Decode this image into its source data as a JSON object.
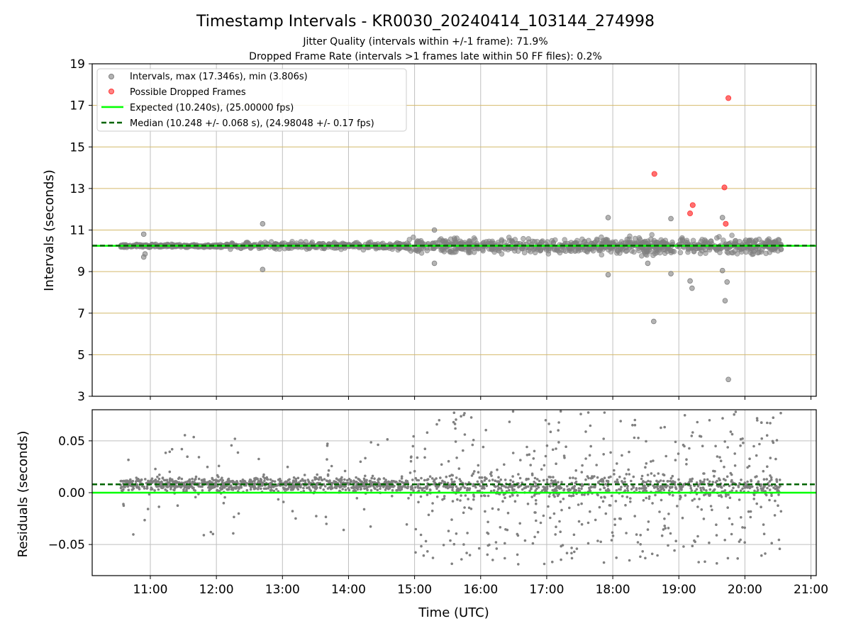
{
  "figure": {
    "title": "Timestamp Intervals - KR0030_20240414_103144_274998",
    "subtitle_1": "Jitter Quality (intervals within +/-1 frame): 71.9%",
    "subtitle_2": "Dropped Frame Rate (intervals >1 frames late within 50 FF files): 0.2%",
    "colors": {
      "intervals": "#808080",
      "dropped": "#ff3333",
      "expected": "#00ff00",
      "median": "#006400",
      "hgrid": "#d4b96a",
      "vgrid": "#bfbfbf"
    }
  },
  "chart_data": [
    {
      "type": "scatter",
      "panel": "intervals",
      "ylabel": "Intervals (seconds)",
      "xlabel": "",
      "x_unit": "hours (UTC)",
      "xlim": [
        10.12,
        21.08
      ],
      "ylim": [
        3,
        19
      ],
      "y_ticks": [
        3,
        5,
        7,
        9,
        11,
        13,
        15,
        17,
        19
      ],
      "y_tick_labels": [
        "3",
        "5",
        "7",
        "9",
        "11",
        "13",
        "15",
        "17",
        "19"
      ],
      "grid": "on",
      "legend_position": "top-left",
      "legend": [
        "Intervals, max (17.346s), min (3.806s)",
        "Possible Dropped Frames",
        "Expected (10.240s), (25.00000 fps)",
        "Median (10.248 +/- 0.068 s), (24.98048 +/- 0.17 fps)"
      ],
      "expected": 10.24,
      "median": 10.248,
      "dropped_frames": [
        {
          "x": 18.63,
          "y": 13.7
        },
        {
          "x": 19.17,
          "y": 11.8
        },
        {
          "x": 19.21,
          "y": 12.2
        },
        {
          "x": 19.69,
          "y": 13.05
        },
        {
          "x": 19.71,
          "y": 11.3
        },
        {
          "x": 19.75,
          "y": 17.35
        }
      ],
      "outliers": [
        {
          "x": 10.9,
          "y": 10.8
        },
        {
          "x": 10.9,
          "y": 9.7
        },
        {
          "x": 10.92,
          "y": 9.85
        },
        {
          "x": 12.7,
          "y": 11.3
        },
        {
          "x": 12.7,
          "y": 9.1
        },
        {
          "x": 15.3,
          "y": 11.0
        },
        {
          "x": 15.3,
          "y": 9.4
        },
        {
          "x": 17.93,
          "y": 11.6
        },
        {
          "x": 17.93,
          "y": 8.85
        },
        {
          "x": 18.62,
          "y": 6.6
        },
        {
          "x": 18.53,
          "y": 9.4
        },
        {
          "x": 18.88,
          "y": 11.55
        },
        {
          "x": 18.88,
          "y": 8.9
        },
        {
          "x": 19.17,
          "y": 8.55
        },
        {
          "x": 19.2,
          "y": 8.2
        },
        {
          "x": 19.66,
          "y": 11.6
        },
        {
          "x": 19.66,
          "y": 9.05
        },
        {
          "x": 19.7,
          "y": 7.6
        },
        {
          "x": 19.73,
          "y": 8.5
        },
        {
          "x": 19.75,
          "y": 3.81
        }
      ],
      "scatter_bands": [
        {
          "x_range": [
            10.55,
            12.2
          ],
          "center": 10.24,
          "spread": 0.06,
          "count": 260
        },
        {
          "x_range": [
            12.2,
            14.9
          ],
          "center": 10.24,
          "spread": 0.14,
          "count": 320
        },
        {
          "x_range": [
            14.9,
            17.8
          ],
          "center": 10.24,
          "spread": 0.3,
          "count": 360
        },
        {
          "x_range": [
            17.8,
            20.55
          ],
          "center": 10.24,
          "spread": 0.33,
          "count": 420
        }
      ]
    },
    {
      "type": "scatter",
      "panel": "residuals",
      "ylabel": "Residuals (seconds)",
      "xlabel": "Time (UTC)",
      "x_unit": "hours (UTC)",
      "xlim": [
        10.12,
        21.08
      ],
      "ylim": [
        -0.08,
        0.08
      ],
      "y_ticks": [
        -0.05,
        0.0,
        0.05
      ],
      "y_tick_labels": [
        "−0.05",
        "0.00",
        "0.05"
      ],
      "x_ticks": [
        11,
        12,
        13,
        14,
        15,
        16,
        17,
        18,
        19,
        20,
        21
      ],
      "x_tick_labels": [
        "11:00",
        "12:00",
        "13:00",
        "14:00",
        "15:00",
        "16:00",
        "17:00",
        "18:00",
        "19:00",
        "20:00",
        "21:00"
      ],
      "grid": "on",
      "expected": 0.0,
      "median": 0.008,
      "scatter_bands": [
        {
          "x_range": [
            10.55,
            14.9
          ],
          "center": 0.008,
          "spread": 0.006,
          "count": 900,
          "outlier_spread": 0.05,
          "outlier_count": 70
        },
        {
          "x_range": [
            14.9,
            20.55
          ],
          "center": 0.006,
          "spread": 0.01,
          "count": 700,
          "outlier_spread": 0.075,
          "outlier_count": 420
        }
      ]
    }
  ]
}
